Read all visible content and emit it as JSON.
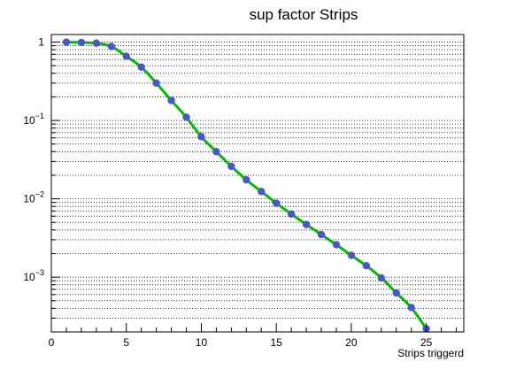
{
  "chart_data": {
    "type": "line",
    "title": "sup factor Strips",
    "xlabel": "Strips triggerd",
    "ylabel": "",
    "yscale": "log",
    "xlim": [
      0,
      27.5
    ],
    "ylim": [
      0.0002,
      1.25
    ],
    "grid": true,
    "x_ticks": [
      0,
      5,
      10,
      15,
      20,
      25
    ],
    "y_ticks": [
      {
        "value": 1,
        "label": "1",
        "exp": ""
      },
      {
        "value": 0.1,
        "label": "10",
        "exp": "−1"
      },
      {
        "value": 0.01,
        "label": "10",
        "exp": "−2"
      },
      {
        "value": 0.001,
        "label": "10",
        "exp": "−3"
      }
    ],
    "series": [
      {
        "name": "sup factor",
        "marker_color": "#4a56c9",
        "line_color": "#00bb00",
        "x": [
          1,
          2,
          3,
          4,
          5,
          6,
          7,
          8,
          9,
          10,
          11,
          12,
          13,
          14,
          15,
          16,
          17,
          18,
          19,
          20,
          21,
          22,
          23,
          24,
          25
        ],
        "values": [
          1.0,
          0.99,
          0.97,
          0.88,
          0.66,
          0.48,
          0.3,
          0.18,
          0.11,
          0.062,
          0.04,
          0.026,
          0.0175,
          0.0124,
          0.0088,
          0.0064,
          0.0047,
          0.0035,
          0.0026,
          0.0019,
          0.0014,
          0.00098,
          0.00063,
          0.00041,
          0.00022
        ]
      }
    ]
  }
}
